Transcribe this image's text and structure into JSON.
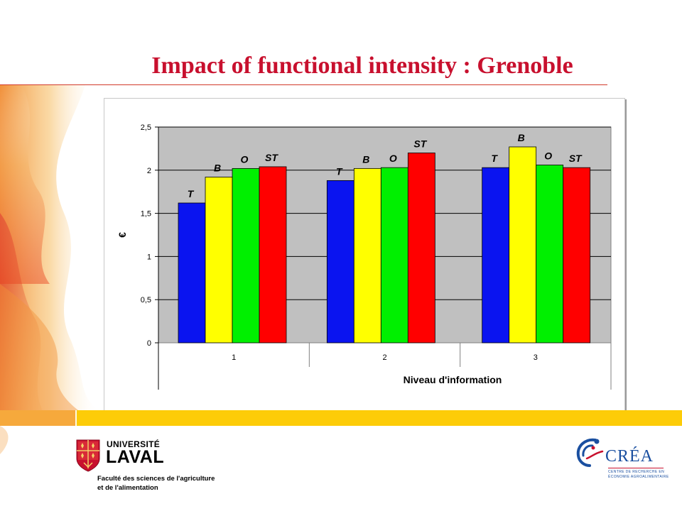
{
  "slide": {
    "title": "Impact of functional intensity : Grenoble"
  },
  "colors": {
    "title": "#c8102e",
    "band_left": "#f6a93c",
    "band_right": "#fdcc08",
    "plot_area": "#c0c0c0"
  },
  "chart_data": {
    "type": "bar",
    "title": "",
    "xlabel": "Niveau d'information",
    "ylabel": "€",
    "ylim": [
      0,
      2.5
    ],
    "yticks": [
      "0",
      "0,5",
      "1",
      "1,5",
      "2",
      "2,5"
    ],
    "grid": true,
    "legend": "none",
    "categories": [
      "1",
      "2",
      "3"
    ],
    "series": [
      {
        "name": "T",
        "color": "#0a14f0",
        "values": [
          1.62,
          1.88,
          2.03
        ]
      },
      {
        "name": "B",
        "color": "#ffff00",
        "values": [
          1.92,
          2.02,
          2.27
        ]
      },
      {
        "name": "O",
        "color": "#00f000",
        "values": [
          2.02,
          2.03,
          2.06
        ]
      },
      {
        "name": "ST",
        "color": "#ff0000",
        "values": [
          2.04,
          2.2,
          2.03
        ]
      }
    ],
    "bar_labels": [
      [
        "T",
        "B",
        "O",
        "ST"
      ],
      [
        "T",
        "B",
        "O",
        "ST"
      ],
      [
        "T",
        "B",
        "O",
        "ST"
      ]
    ]
  },
  "logos": {
    "laval": {
      "line1": "UNIVERSITÉ",
      "line2": "LAVAL",
      "faculty_1": "Faculté des sciences de l'agriculture",
      "faculty_2": "et de l'alimentation"
    },
    "crea": {
      "name": "CRÉA",
      "sub_1": "CENTRE DE RECHERCHE EN",
      "sub_2": "ÉCONOMIE AGROALIMENTAIRE"
    }
  }
}
